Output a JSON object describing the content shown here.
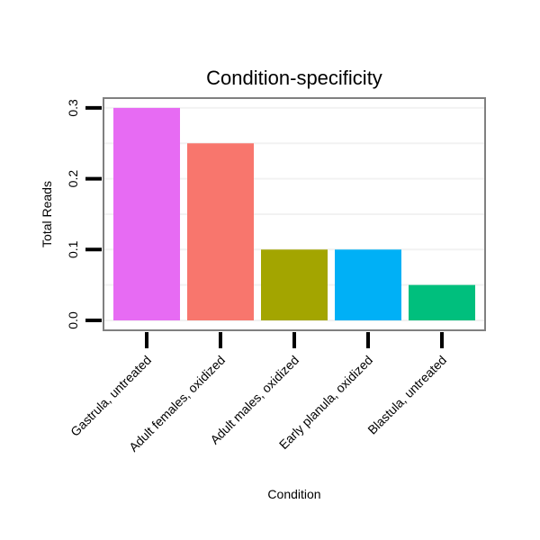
{
  "chart_data": {
    "type": "bar",
    "title": "Condition-specificity",
    "xlabel": "Condition",
    "ylabel": "Total Reads",
    "categories": [
      "Gastrula, untreated",
      "Adult females, oxidized",
      "Adult males, oxidized",
      "Early planula, oxidized",
      "Blastula, untreated"
    ],
    "values": [
      0.3,
      0.25,
      0.1,
      0.1,
      0.05
    ],
    "colors": [
      "#E76BF3",
      "#F8766D",
      "#A3A500",
      "#00B0F6",
      "#00BF7D"
    ],
    "ylim": [
      0,
      0.315
    ],
    "yticks": [
      0.0,
      0.1,
      0.2,
      0.3
    ],
    "ytick_labels": [
      "0.0",
      "0.1",
      "0.2",
      "0.3"
    ],
    "grid": true,
    "legend": "none"
  }
}
